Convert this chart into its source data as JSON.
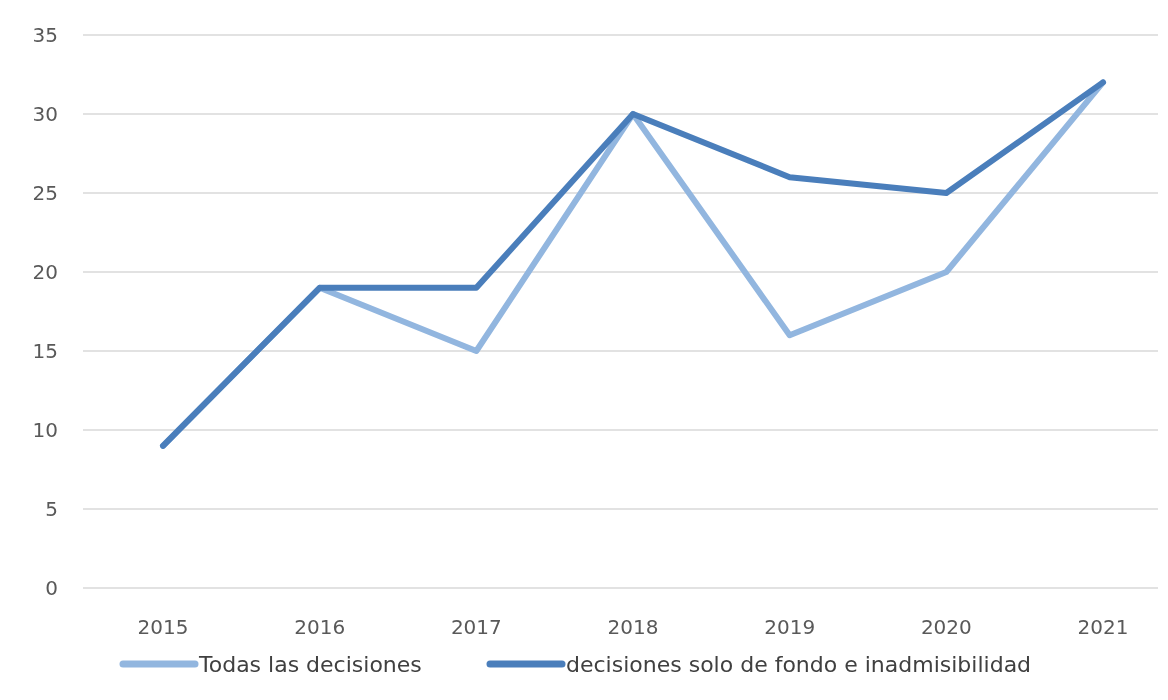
{
  "chart_data": {
    "type": "line",
    "categories": [
      "2015",
      "2016",
      "2017",
      "2018",
      "2019",
      "2020",
      "2021"
    ],
    "series": [
      {
        "name": "Todas las decisiones",
        "color": "#92b6df",
        "values": [
          9,
          19,
          15,
          30,
          16,
          20,
          32
        ]
      },
      {
        "name": "decisiones solo de fondo e inadmisibilidad",
        "color": "#4a7ebb",
        "values": [
          9,
          19,
          19,
          30,
          26,
          25,
          32
        ]
      }
    ],
    "ylim": [
      0,
      35
    ],
    "yticks": [
      0,
      5,
      10,
      15,
      20,
      25,
      30,
      35
    ],
    "grid": "y",
    "legend": "bottom",
    "marker": "none",
    "line_style": "solid"
  }
}
